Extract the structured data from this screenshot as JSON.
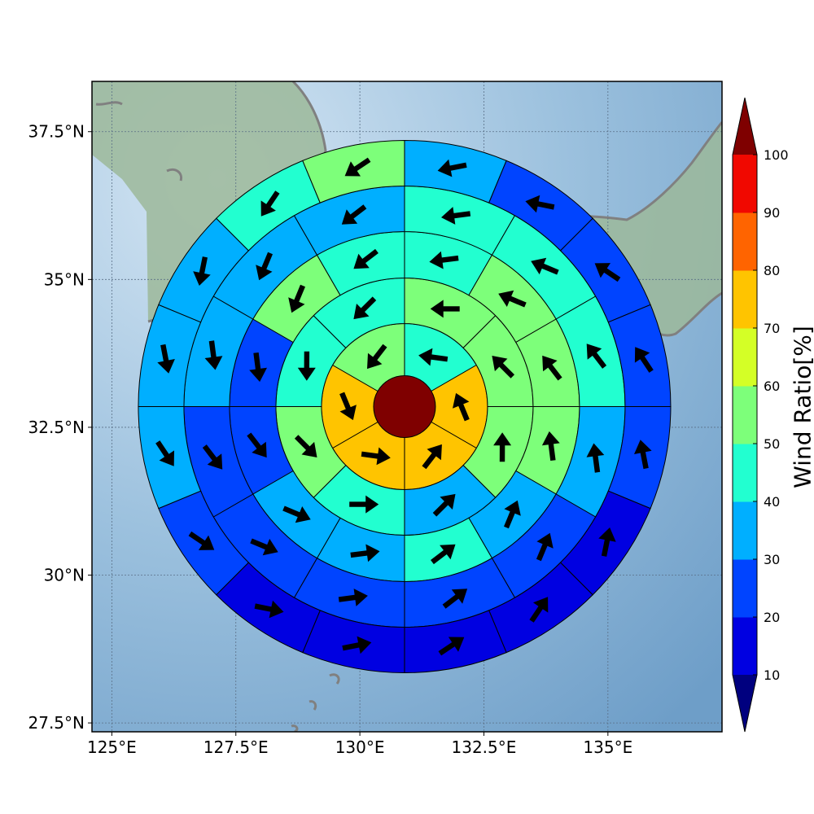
{
  "map": {
    "lon_ticks": [
      "125°E",
      "127.5°E",
      "130°E",
      "132.5°E",
      "135°E"
    ],
    "lon_values": [
      125,
      127.5,
      130,
      132.5,
      135
    ],
    "lat_ticks": [
      "37.5°N",
      "35°N",
      "32.5°N",
      "30°N",
      "27.5°N"
    ],
    "lat_values": [
      37.5,
      35,
      32.5,
      30,
      27.5
    ],
    "lon_range": [
      124.6,
      137.3
    ],
    "lat_range": [
      27.35,
      38.35
    ],
    "center": {
      "lon": 130.9,
      "lat": 32.85
    },
    "ocean_colors": [
      "#d4e5f3",
      "#9cc1de",
      "#6e9ec8"
    ],
    "land_color": "#9cb99a",
    "coast_color": "#808080",
    "grid_color": "#5a6f86"
  },
  "rings": {
    "count": 6,
    "sectors_per_ring": [
      1,
      6,
      8,
      12,
      12,
      16
    ],
    "values": [
      [
        100
      ],
      [
        45,
        77,
        73,
        73,
        73,
        55
      ],
      [
        55,
        55,
        55,
        35,
        42,
        50,
        48,
        42
      ],
      [
        42,
        55,
        55,
        52,
        35,
        45,
        35,
        35,
        20,
        20,
        55,
        45
      ],
      [
        42,
        45,
        45,
        38,
        25,
        25,
        20,
        20,
        20,
        30,
        35,
        38
      ],
      [
        35,
        25,
        25,
        22,
        20,
        18,
        15,
        15,
        10,
        12,
        25,
        30,
        35,
        35,
        45,
        50
      ]
    ],
    "arrow_color": "#000000"
  },
  "colorbar": {
    "title": "Wind Ratio[%]",
    "tick_labels": [
      "10",
      "20",
      "30",
      "40",
      "50",
      "60",
      "70",
      "80",
      "90",
      "100"
    ],
    "levels": [
      10,
      20,
      30,
      40,
      50,
      60,
      70,
      80,
      90,
      100
    ],
    "under_color": "#00007f",
    "over_color": "#7f0000",
    "colors": [
      "#0000e1",
      "#0044ff",
      "#00afff",
      "#22ffd0",
      "#7dff7a",
      "#d4ff26",
      "#ffc400",
      "#ff6400",
      "#f10800"
    ]
  }
}
